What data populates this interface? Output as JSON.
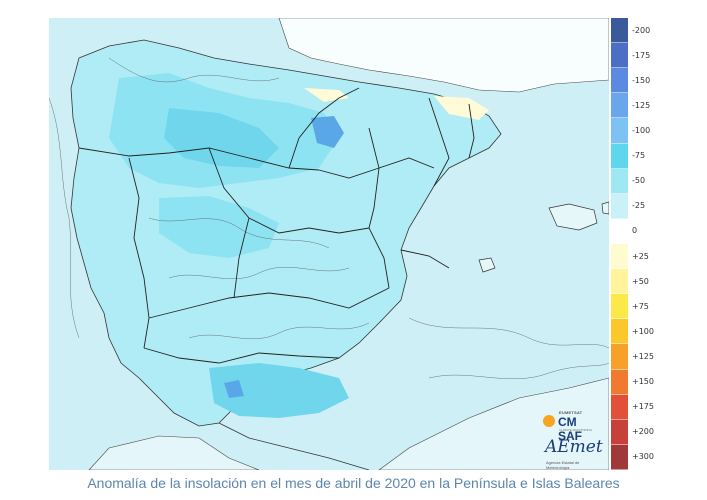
{
  "caption": "Anomalía de la insolación en el mes de abril de 2020 en la Península e Islas Baleares",
  "legend": {
    "labels": [
      "-200",
      "-175",
      "-150",
      "-125",
      "-100",
      "-75",
      "-50",
      "-25",
      "0",
      "+25",
      "+50",
      "+75",
      "+100",
      "+125",
      "+150",
      "+175",
      "+200",
      "+300"
    ],
    "colors": [
      "#3a5a9c",
      "#4a6fc4",
      "#5b8be0",
      "#6aa6ec",
      "#7cc2f2",
      "#5dd6ee",
      "#9fe7f3",
      "#c8f2f7",
      "#ffffff",
      "#fffbd0",
      "#fff49a",
      "#fde84a",
      "#fbc72a",
      "#f7a02a",
      "#f07a30",
      "#e25038",
      "#c8403a",
      "#a03a3a"
    ]
  },
  "logos": {
    "cmsaf_small": "EUMETSAT",
    "cmsaf_big": "CM SAF",
    "cmsaf_sub": "CLIMATE MONITORING",
    "aemet_mark": "AEmet",
    "aemet_sub": "Agencia Estatal de Meteorología"
  },
  "map": {
    "land_color": "#b0ecf5",
    "sea_color": "#cfeff6",
    "france_color": "#ffffff",
    "zone_colors": [
      "#8ee3f2",
      "#6fd6ec",
      "#5aa7e8",
      "#fffbd8",
      "#e6f7fa"
    ]
  }
}
